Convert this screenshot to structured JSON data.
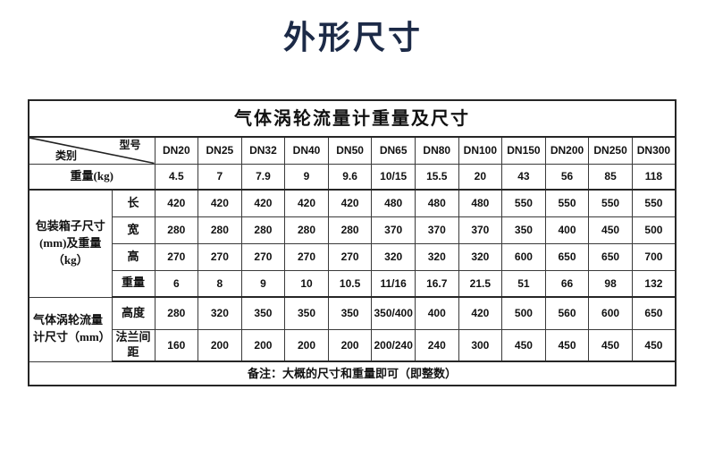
{
  "page_title": "外形尺寸",
  "colors": {
    "page_title": "#1c2a47",
    "table_border": "#262626",
    "grid_line": "#3a3a3a",
    "text": "#111111"
  },
  "table": {
    "title": "气体涡轮流量计重量及尺寸",
    "corner": {
      "top_right": "型号",
      "bottom_left": "类别"
    },
    "columns": [
      "DN20",
      "DN25",
      "DN32",
      "DN40",
      "DN50",
      "DN65",
      "DN80",
      "DN100",
      "DN150",
      "DN200",
      "DN250",
      "DN300"
    ],
    "rows": [
      {
        "label": "重量(kg)",
        "label_colspan": 2,
        "section_end": true,
        "values": [
          "4.5",
          "7",
          "7.9",
          "9",
          "9.6",
          "10/15",
          "15.5",
          "20",
          "43",
          "56",
          "85",
          "118"
        ]
      },
      {
        "group": {
          "label": "包装箱子尺寸(mm)及重量（kg）",
          "rowspan": 4
        },
        "label": "长",
        "values": [
          "420",
          "420",
          "420",
          "420",
          "420",
          "480",
          "480",
          "480",
          "550",
          "550",
          "550",
          "550"
        ]
      },
      {
        "label": "宽",
        "values": [
          "280",
          "280",
          "280",
          "280",
          "280",
          "370",
          "370",
          "370",
          "350",
          "400",
          "450",
          "500"
        ]
      },
      {
        "label": "高",
        "values": [
          "270",
          "270",
          "270",
          "270",
          "270",
          "320",
          "320",
          "320",
          "600",
          "650",
          "650",
          "700"
        ]
      },
      {
        "label": "重量",
        "section_end": true,
        "values": [
          "6",
          "8",
          "9",
          "10",
          "10.5",
          "11/16",
          "16.7",
          "21.5",
          "51",
          "66",
          "98",
          "132"
        ]
      },
      {
        "group": {
          "label": "气体涡轮流量计尺寸（mm）",
          "rowspan": 2,
          "align": "left"
        },
        "label": "高度",
        "tall": true,
        "values": [
          "280",
          "320",
          "350",
          "350",
          "350",
          "350/400",
          "400",
          "420",
          "500",
          "560",
          "600",
          "650"
        ]
      },
      {
        "label": "法兰间距",
        "tall": true,
        "section_end": true,
        "values": [
          "160",
          "200",
          "200",
          "200",
          "200",
          "200/240",
          "240",
          "300",
          "450",
          "450",
          "450",
          "450"
        ]
      }
    ],
    "note": "备注：大概的尺寸和重量即可（即整数）"
  },
  "chart_data": {
    "type": "table",
    "title": "气体涡轮流量计重量及尺寸",
    "columns": [
      "DN20",
      "DN25",
      "DN32",
      "DN40",
      "DN50",
      "DN65",
      "DN80",
      "DN100",
      "DN150",
      "DN200",
      "DN250",
      "DN300"
    ],
    "rows": [
      {
        "name": "重量(kg)",
        "values": [
          "4.5",
          "7",
          "7.9",
          "9",
          "9.6",
          "10/15",
          "15.5",
          "20",
          "43",
          "56",
          "85",
          "118"
        ]
      },
      {
        "name": "包装箱子尺寸(mm)及重量（kg）- 长",
        "values": [
          "420",
          "420",
          "420",
          "420",
          "420",
          "480",
          "480",
          "480",
          "550",
          "550",
          "550",
          "550"
        ]
      },
      {
        "name": "包装箱子尺寸(mm)及重量（kg）- 宽",
        "values": [
          "280",
          "280",
          "280",
          "280",
          "280",
          "370",
          "370",
          "370",
          "350",
          "400",
          "450",
          "500"
        ]
      },
      {
        "name": "包装箱子尺寸(mm)及重量（kg）- 高",
        "values": [
          "270",
          "270",
          "270",
          "270",
          "270",
          "320",
          "320",
          "320",
          "600",
          "650",
          "650",
          "700"
        ]
      },
      {
        "name": "包装箱子尺寸(mm)及重量（kg）- 重量",
        "values": [
          "6",
          "8",
          "9",
          "10",
          "10.5",
          "11/16",
          "16.7",
          "21.5",
          "51",
          "66",
          "98",
          "132"
        ]
      },
      {
        "name": "气体涡轮流量计尺寸（mm）- 高度",
        "values": [
          "280",
          "320",
          "350",
          "350",
          "350",
          "350/400",
          "400",
          "420",
          "500",
          "560",
          "600",
          "650"
        ]
      },
      {
        "name": "气体涡轮流量计尺寸（mm）- 法兰间距",
        "values": [
          "160",
          "200",
          "200",
          "200",
          "200",
          "200/240",
          "240",
          "300",
          "450",
          "450",
          "450",
          "450"
        ]
      }
    ],
    "note": "备注：大概的尺寸和重量即可（即整数）"
  }
}
